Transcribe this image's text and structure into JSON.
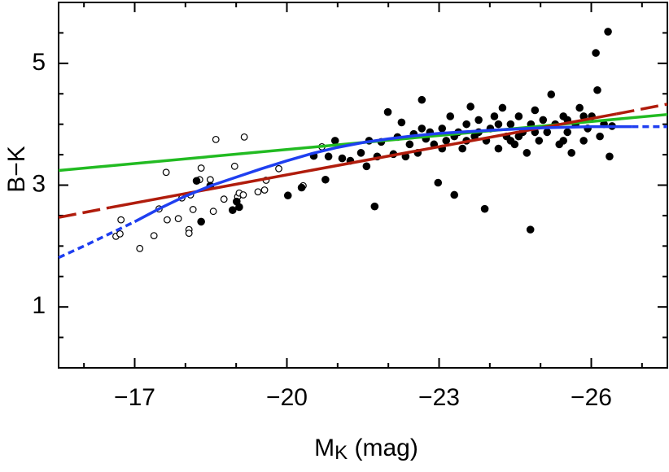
{
  "chart_data": {
    "type": "scatter",
    "xlabel": {
      "main": "M",
      "sub": "K",
      "rest": " (mag)"
    },
    "ylabel": "B−K",
    "xlim": [
      -15.5,
      -27.5
    ],
    "ylim": [
      0,
      6
    ],
    "xticks": [
      {
        "value": -17,
        "label": "−17"
      },
      {
        "value": -20,
        "label": "−20"
      },
      {
        "value": -23,
        "label": "−23"
      },
      {
        "value": -26,
        "label": "−26"
      }
    ],
    "yticks": [
      1,
      3,
      5
    ],
    "xminorticks": [
      -16,
      -18,
      -19,
      -21,
      -22,
      -24,
      -25,
      -27
    ],
    "yminorticks": [
      0.5,
      1.5,
      2,
      2.5,
      3.5,
      4,
      4.5,
      5.5
    ],
    "open_points": {
      "x": [
        -16.63,
        -16.71,
        -16.73,
        -17.1,
        -17.38,
        -17.48,
        -17.62,
        -17.64,
        -17.86,
        -17.93,
        -18.07,
        -18.07,
        -18.1,
        -18.15,
        -18.28,
        -18.31,
        -18.49,
        -18.55,
        -18.6,
        -18.76,
        -18.97,
        -19.03,
        -19.06,
        -19.14,
        -19.16,
        -19.43,
        -19.56,
        -19.59,
        -19.84,
        -20.32,
        -20.69
      ],
      "y": [
        2.16,
        2.2,
        2.43,
        1.96,
        2.17,
        2.61,
        3.21,
        2.43,
        2.45,
        2.79,
        2.27,
        2.21,
        2.84,
        2.6,
        3.09,
        3.28,
        3.09,
        2.57,
        3.75,
        2.77,
        3.31,
        2.81,
        2.87,
        2.84,
        3.79,
        2.89,
        2.92,
        3.08,
        3.27,
        2.99,
        3.63
      ]
    },
    "filled_points": {
      "x": [
        -18.22,
        -18.31,
        -18.49,
        -18.93,
        -19.01,
        -19.06,
        -20.02,
        -20.29,
        -20.53,
        -20.76,
        -20.82,
        -20.95,
        -21.09,
        -21.25,
        -21.46,
        -21.57,
        -21.62,
        -21.73,
        -21.78,
        -21.86,
        -21.99,
        -22.1,
        -22.18,
        -22.26,
        -22.34,
        -22.42,
        -22.5,
        -22.58,
        -22.66,
        -22.74,
        -22.82,
        -22.9,
        -22.98,
        -23.06,
        -23.14,
        -23.22,
        -23.3,
        -23.38,
        -23.46,
        -23.54,
        -23.62,
        -23.7,
        -23.78,
        -23.9,
        -23.93,
        -24.01,
        -24.09,
        -24.17,
        -24.25,
        -24.33,
        -24.41,
        -24.49,
        -24.57,
        -24.65,
        -24.73,
        -24.8,
        -24.81,
        -24.89,
        -24.97,
        -25.05,
        -25.13,
        -25.21,
        -25.29,
        -25.37,
        -25.45,
        -25.53,
        -25.61,
        -25.69,
        -25.77,
        -25.85,
        -25.93,
        -26.01,
        -26.09,
        -26.12,
        -26.17,
        -26.25,
        -26.33,
        -26.36,
        -26.41,
        -22.66,
        -23.3,
        -23.78,
        -24.17,
        -24.57,
        -24.89,
        -25.53,
        -25.85,
        -25.45,
        -24.41,
        -23.54,
        -23.06
      ],
      "y": [
        3.07,
        2.4,
        2.99,
        2.59,
        2.73,
        2.64,
        2.83,
        2.96,
        3.48,
        3.09,
        3.47,
        3.73,
        3.44,
        3.4,
        3.53,
        3.31,
        3.73,
        2.65,
        3.47,
        3.71,
        4.2,
        3.51,
        3.79,
        4.03,
        3.47,
        3.67,
        3.84,
        3.53,
        4.4,
        3.76,
        3.87,
        3.67,
        3.04,
        3.93,
        3.73,
        4.13,
        2.84,
        3.87,
        3.6,
        4.0,
        4.29,
        3.8,
        4.07,
        2.61,
        3.73,
        3.93,
        4.13,
        3.6,
        4.27,
        3.8,
        4.0,
        3.67,
        4.13,
        3.87,
        3.53,
        2.27,
        4.0,
        4.23,
        3.73,
        4.07,
        3.87,
        4.49,
        4.0,
        3.67,
        4.13,
        3.87,
        3.53,
        4.0,
        4.27,
        3.73,
        3.93,
        4.13,
        5.17,
        4.56,
        3.8,
        4.0,
        5.52,
        3.47,
        3.97,
        3.93,
        3.8,
        3.87,
        4.0,
        3.8,
        3.87,
        4.07,
        4.13,
        3.73,
        3.73,
        3.73,
        3.6
      ]
    },
    "fits": [
      {
        "color": "#22bb22",
        "dash": false,
        "x": [
          -15.5,
          -27.5
        ],
        "y": [
          3.24,
          4.16
        ]
      },
      {
        "color": "#b01c0c",
        "dash": true,
        "x": [
          -15.5,
          -16.5
        ],
        "y": [
          2.47,
          2.63
        ]
      },
      {
        "color": "#b01c0c",
        "dash": false,
        "x": [
          -16.5,
          -26.5
        ],
        "y": [
          2.63,
          4.17
        ]
      },
      {
        "color": "#b01c0c",
        "dash": true,
        "x": [
          -26.5,
          -27.5
        ],
        "y": [
          4.17,
          4.33
        ]
      },
      {
        "color": "#1f3ff0",
        "dash": true,
        "x": [
          -15.5,
          -16,
          -16.5,
          -17
        ],
        "y": [
          1.81,
          2.0,
          2.2,
          2.4
        ]
      },
      {
        "color": "#1f3ff0",
        "dash": false,
        "x": [
          -17,
          -17.5,
          -18,
          -18.5,
          -19,
          -19.5,
          -20,
          -20.5,
          -21,
          -21.5,
          -22,
          -22.5,
          -23,
          -24,
          -25,
          -26,
          -26.8
        ],
        "y": [
          2.4,
          2.62,
          2.82,
          2.99,
          3.13,
          3.27,
          3.4,
          3.52,
          3.62,
          3.7,
          3.76,
          3.81,
          3.85,
          3.9,
          3.94,
          3.96,
          3.96
        ]
      },
      {
        "color": "#1f3ff0",
        "dash": true,
        "x": [
          -26.8,
          -27.5
        ],
        "y": [
          3.96,
          3.96
        ]
      }
    ]
  }
}
